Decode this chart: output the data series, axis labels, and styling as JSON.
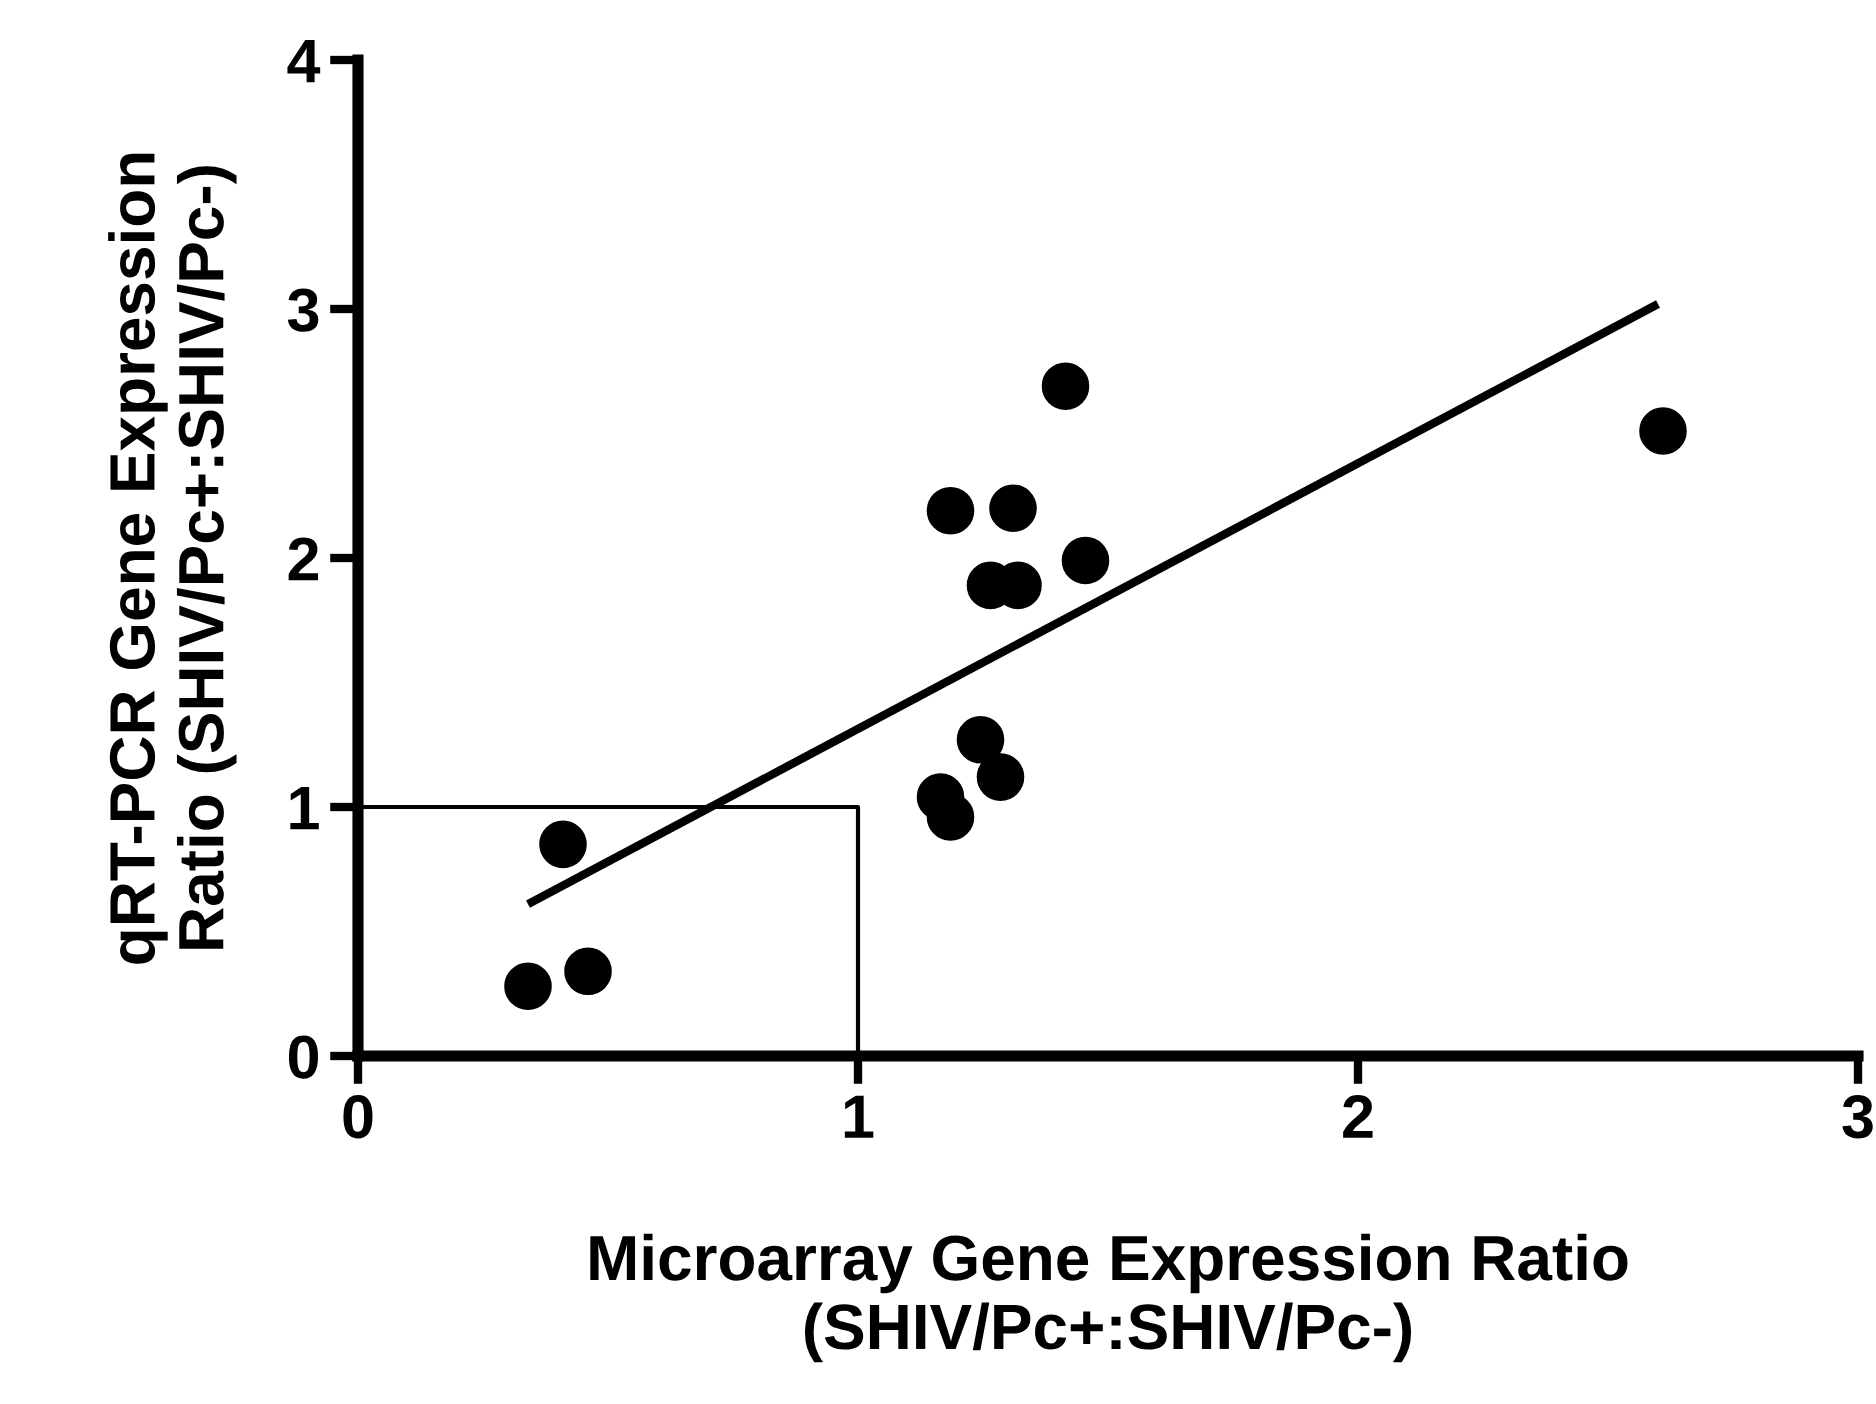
{
  "chart_data": {
    "type": "scatter",
    "xlabel": "Microarray Gene Expression Ratio\n(SHIV/Pc+:SHIV/Pc-)",
    "ylabel": "qRT-PCR Gene Expression\nRatio (SHIV/Pc+:SHIV/Pc-)",
    "series": [
      {
        "color": "#000000",
        "marker": "circle",
        "x": [
          0.41,
          0.34,
          0.46,
          1.415,
          2.61,
          1.185,
          1.31,
          1.455,
          1.265,
          1.32,
          1.245,
          1.285,
          1.165,
          1.185
        ],
        "values": [
          0.85,
          0.28,
          0.34,
          2.69,
          2.51,
          2.19,
          2.2,
          1.99,
          1.89,
          1.89,
          1.27,
          1.12,
          1.04,
          0.96
        ]
      },
      {
        "type": "line",
        "color": "#000000",
        "line_style": "solid",
        "x": [
          0.34,
          2.6
        ],
        "values": [
          0.61,
          3.02
        ]
      },
      {
        "type": "line",
        "color": "#000000",
        "line_style": "solid",
        "x": [
          0,
          1,
          1
        ],
        "values": [
          1,
          1,
          0
        ]
      }
    ],
    "xlim": [
      0,
      3
    ],
    "xticks": [
      0,
      1,
      2,
      3
    ],
    "ylim": [
      0,
      4
    ],
    "yticks": [
      0,
      1,
      2,
      3,
      4
    ],
    "grid": false
  }
}
